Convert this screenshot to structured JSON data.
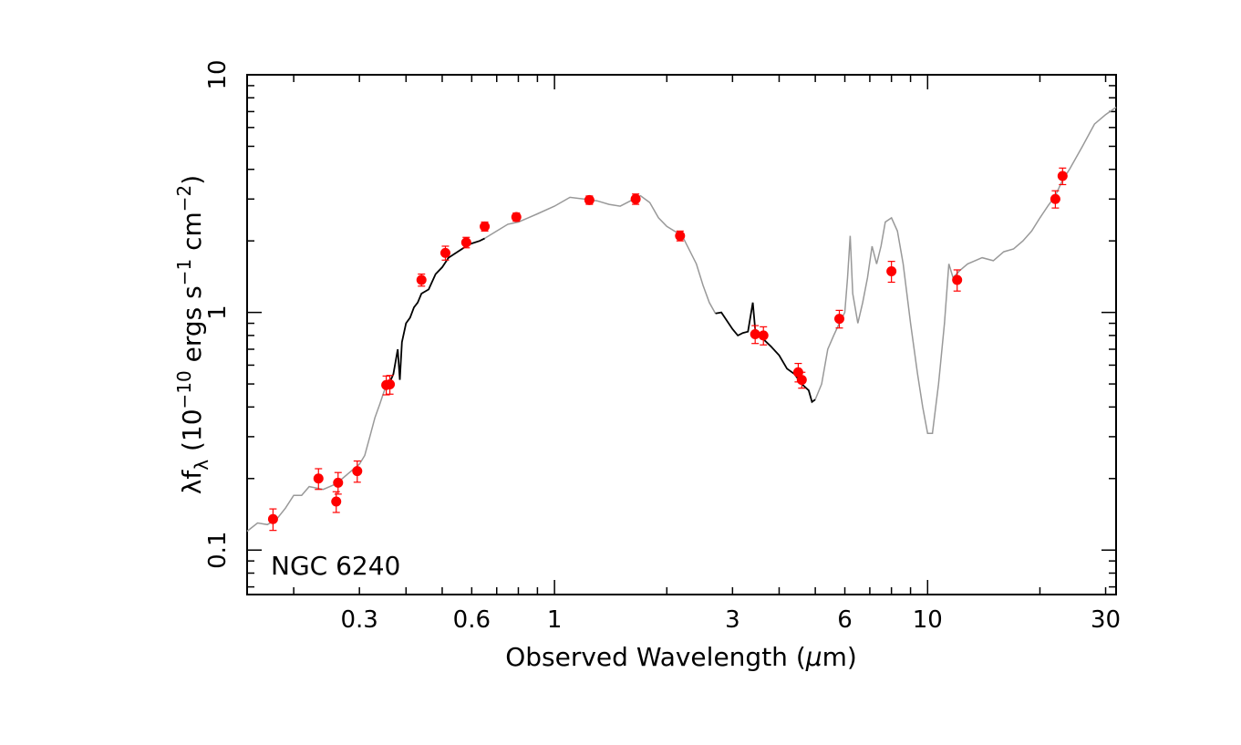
{
  "chart_data": {
    "type": "scatter",
    "annotation": "NGC 6240",
    "xlabel": "Observed Wavelength (μm)",
    "xlabel_parts": {
      "main": "Observed Wavelength (",
      "mu": "μ",
      "unit": "m)"
    },
    "ylabel_parts": {
      "lambda": "λ",
      "f": "f",
      "sub": "λ",
      "open": " (10",
      "exp1": "−10",
      "mid1": " ergs s",
      "exp2": "−1",
      "mid2": " cm",
      "exp3": "−2",
      "close": ")"
    },
    "x_scale": "log",
    "y_scale": "log",
    "xlim": [
      0.15,
      32
    ],
    "ylim": [
      0.065,
      10
    ],
    "x_tick_labels": [
      {
        "value": 0.3,
        "label": "0.3"
      },
      {
        "value": 0.6,
        "label": "0.6"
      },
      {
        "value": 1,
        "label": "1"
      },
      {
        "value": 3,
        "label": "3"
      },
      {
        "value": 6,
        "label": "6"
      },
      {
        "value": 10,
        "label": "10"
      },
      {
        "value": 30,
        "label": "30"
      }
    ],
    "y_tick_labels": [
      {
        "value": 0.1,
        "label": "0.1"
      },
      {
        "value": 1,
        "label": "1"
      },
      {
        "value": 10,
        "label": "10"
      }
    ],
    "colors": {
      "points": "#ff0000",
      "error_bars": "#ff0000",
      "observed_spectrum": "#000000",
      "template_spectrum": "#999999"
    },
    "photometry": [
      {
        "x": 0.176,
        "y": 0.135,
        "err": 0.014
      },
      {
        "x": 0.233,
        "y": 0.2,
        "err": 0.02
      },
      {
        "x": 0.26,
        "y": 0.16,
        "err": 0.016
      },
      {
        "x": 0.263,
        "y": 0.192,
        "err": 0.02
      },
      {
        "x": 0.296,
        "y": 0.215,
        "err": 0.022
      },
      {
        "x": 0.354,
        "y": 0.495,
        "err": 0.045
      },
      {
        "x": 0.362,
        "y": 0.498,
        "err": 0.045
      },
      {
        "x": 0.44,
        "y": 1.37,
        "err": 0.08
      },
      {
        "x": 0.51,
        "y": 1.78,
        "err": 0.12
      },
      {
        "x": 0.58,
        "y": 1.97,
        "err": 0.1
      },
      {
        "x": 0.65,
        "y": 2.3,
        "err": 0.1
      },
      {
        "x": 0.79,
        "y": 2.52,
        "err": 0.1
      },
      {
        "x": 1.24,
        "y": 2.97,
        "err": 0.12
      },
      {
        "x": 1.65,
        "y": 3.0,
        "err": 0.15
      },
      {
        "x": 2.17,
        "y": 2.1,
        "err": 0.1
      },
      {
        "x": 3.45,
        "y": 0.81,
        "err": 0.07
      },
      {
        "x": 3.63,
        "y": 0.8,
        "err": 0.07
      },
      {
        "x": 4.5,
        "y": 0.56,
        "err": 0.05
      },
      {
        "x": 4.6,
        "y": 0.52,
        "err": 0.04
      },
      {
        "x": 5.8,
        "y": 0.94,
        "err": 0.08
      },
      {
        "x": 8.0,
        "y": 1.49,
        "err": 0.15
      },
      {
        "x": 12.0,
        "y": 1.37,
        "err": 0.14
      },
      {
        "x": 22.0,
        "y": 3.0,
        "err": 0.25
      },
      {
        "x": 23.0,
        "y": 3.75,
        "err": 0.3
      }
    ],
    "series": [
      {
        "style": "template",
        "points": [
          [
            0.15,
            0.12
          ],
          [
            0.155,
            0.125
          ],
          [
            0.16,
            0.13
          ],
          [
            0.17,
            0.128
          ],
          [
            0.18,
            0.135
          ],
          [
            0.19,
            0.15
          ],
          [
            0.2,
            0.17
          ],
          [
            0.21,
            0.17
          ],
          [
            0.22,
            0.185
          ],
          [
            0.24,
            0.18
          ],
          [
            0.26,
            0.19
          ],
          [
            0.28,
            0.21
          ],
          [
            0.3,
            0.23
          ],
          [
            0.31,
            0.25
          ],
          [
            0.32,
            0.3
          ],
          [
            0.33,
            0.36
          ],
          [
            0.34,
            0.41
          ],
          [
            0.35,
            0.47
          ],
          [
            0.36,
            0.5
          ]
        ]
      },
      {
        "style": "observed",
        "points": [
          [
            0.36,
            0.5
          ],
          [
            0.37,
            0.55
          ],
          [
            0.38,
            0.7
          ],
          [
            0.385,
            0.52
          ],
          [
            0.39,
            0.75
          ],
          [
            0.4,
            0.9
          ],
          [
            0.41,
            0.95
          ],
          [
            0.42,
            1.05
          ],
          [
            0.43,
            1.1
          ],
          [
            0.44,
            1.2
          ],
          [
            0.46,
            1.25
          ],
          [
            0.48,
            1.45
          ],
          [
            0.5,
            1.55
          ],
          [
            0.52,
            1.7
          ],
          [
            0.55,
            1.8
          ],
          [
            0.58,
            1.9
          ],
          [
            0.6,
            1.95
          ],
          [
            0.63,
            2.0
          ],
          [
            0.65,
            2.05
          ]
        ]
      },
      {
        "style": "template",
        "points": [
          [
            0.65,
            2.05
          ],
          [
            0.7,
            2.2
          ],
          [
            0.75,
            2.35
          ],
          [
            0.8,
            2.4
          ],
          [
            0.85,
            2.5
          ],
          [
            0.9,
            2.6
          ],
          [
            1.0,
            2.8
          ],
          [
            1.1,
            3.05
          ],
          [
            1.2,
            3.0
          ],
          [
            1.3,
            2.95
          ],
          [
            1.4,
            2.85
          ],
          [
            1.5,
            2.8
          ],
          [
            1.6,
            2.95
          ],
          [
            1.7,
            3.1
          ],
          [
            1.8,
            2.9
          ],
          [
            1.9,
            2.5
          ],
          [
            2.0,
            2.3
          ],
          [
            2.2,
            2.1
          ],
          [
            2.4,
            1.6
          ],
          [
            2.5,
            1.3
          ],
          [
            2.6,
            1.1
          ],
          [
            2.7,
            0.99
          ]
        ]
      },
      {
        "style": "observed",
        "points": [
          [
            2.7,
            0.99
          ],
          [
            2.8,
            1.0
          ],
          [
            3.0,
            0.85
          ],
          [
            3.1,
            0.8
          ],
          [
            3.2,
            0.82
          ],
          [
            3.3,
            0.83
          ],
          [
            3.4,
            1.1
          ],
          [
            3.45,
            0.85
          ],
          [
            3.6,
            0.78
          ],
          [
            3.8,
            0.72
          ],
          [
            4.0,
            0.66
          ],
          [
            4.2,
            0.58
          ],
          [
            4.4,
            0.55
          ],
          [
            4.6,
            0.5
          ],
          [
            4.8,
            0.47
          ],
          [
            4.9,
            0.42
          ],
          [
            5.0,
            0.43
          ]
        ]
      },
      {
        "style": "template",
        "points": [
          [
            5.0,
            0.43
          ],
          [
            5.2,
            0.5
          ],
          [
            5.4,
            0.7
          ],
          [
            5.6,
            0.8
          ],
          [
            5.8,
            0.9
          ],
          [
            6.0,
            1.0
          ],
          [
            6.1,
            1.4
          ],
          [
            6.2,
            2.1
          ],
          [
            6.3,
            1.2
          ],
          [
            6.5,
            0.9
          ],
          [
            6.7,
            1.1
          ],
          [
            6.9,
            1.4
          ],
          [
            7.1,
            1.9
          ],
          [
            7.3,
            1.6
          ],
          [
            7.5,
            1.9
          ],
          [
            7.7,
            2.4
          ],
          [
            8.0,
            2.5
          ],
          [
            8.3,
            2.2
          ],
          [
            8.6,
            1.6
          ],
          [
            9.0,
            0.9
          ],
          [
            9.4,
            0.55
          ],
          [
            9.7,
            0.4
          ],
          [
            10.0,
            0.31
          ],
          [
            10.3,
            0.31
          ],
          [
            10.7,
            0.5
          ],
          [
            11.1,
            0.9
          ],
          [
            11.4,
            1.6
          ],
          [
            11.7,
            1.4
          ],
          [
            12.2,
            1.5
          ],
          [
            12.8,
            1.6
          ],
          [
            13.4,
            1.65
          ],
          [
            14.0,
            1.7
          ],
          [
            15.0,
            1.65
          ],
          [
            16.0,
            1.8
          ],
          [
            17.0,
            1.85
          ],
          [
            18.0,
            2.0
          ],
          [
            19.0,
            2.2
          ],
          [
            20.0,
            2.5
          ],
          [
            21.0,
            2.8
          ],
          [
            22.0,
            3.1
          ],
          [
            23.0,
            3.6
          ],
          [
            24.0,
            4.0
          ],
          [
            26.0,
            5.0
          ],
          [
            28.0,
            6.2
          ],
          [
            30.0,
            6.8
          ],
          [
            32.0,
            7.3
          ]
        ]
      }
    ]
  }
}
